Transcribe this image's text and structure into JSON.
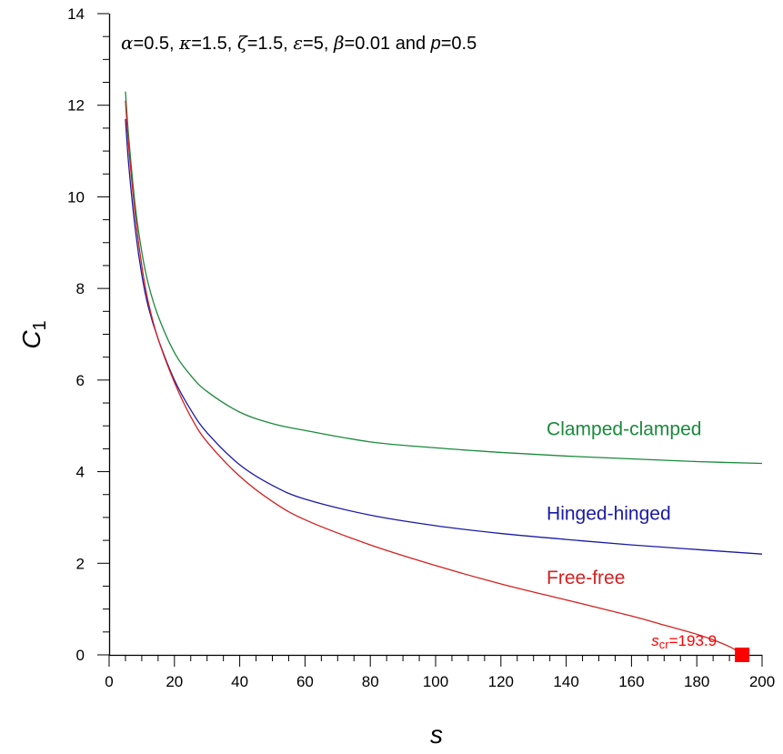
{
  "chart_data": {
    "type": "line",
    "title": "",
    "parameters": [
      {
        "symbol": "α",
        "value": "=0.5, "
      },
      {
        "symbol": "κ",
        "value": "=1.5, "
      },
      {
        "symbol": "ζ",
        "value": "=1.5, "
      },
      {
        "symbol": "ε",
        "value": "=5, "
      },
      {
        "symbol": "β",
        "value": "=0.01 and "
      },
      {
        "symbol": "p",
        "value": "=0.5"
      }
    ],
    "xlabel": "s",
    "ylabel_main": "C",
    "ylabel_sub": "1",
    "xlim": [
      0,
      200
    ],
    "ylim": [
      0,
      14
    ],
    "x_ticks": [
      "0",
      "20",
      "40",
      "60",
      "80",
      "100",
      "120",
      "140",
      "160",
      "180",
      "200"
    ],
    "y_ticks": [
      "0",
      "2",
      "4",
      "6",
      "8",
      "10",
      "12",
      "14"
    ],
    "grid": false,
    "series": [
      {
        "name": "Clamped-clamped",
        "color": "#1a8a3c",
        "x": [
          5,
          6,
          8,
          10,
          12,
          15,
          20,
          25,
          30,
          40,
          50,
          60,
          80,
          100,
          120,
          140,
          160,
          180,
          200
        ],
        "y": [
          12.3,
          11.3,
          9.8,
          8.8,
          8.1,
          7.4,
          6.6,
          6.1,
          5.75,
          5.3,
          5.05,
          4.9,
          4.65,
          4.52,
          4.42,
          4.34,
          4.28,
          4.22,
          4.18
        ]
      },
      {
        "name": "Hinged-hinged",
        "color": "#1a1aa6",
        "x": [
          5,
          6,
          8,
          10,
          12,
          15,
          20,
          25,
          30,
          40,
          50,
          60,
          80,
          100,
          120,
          140,
          160,
          180,
          200
        ],
        "y": [
          11.7,
          10.7,
          9.3,
          8.3,
          7.6,
          6.9,
          6.0,
          5.35,
          4.85,
          4.15,
          3.7,
          3.4,
          3.05,
          2.82,
          2.65,
          2.52,
          2.4,
          2.3,
          2.2
        ]
      },
      {
        "name": "Free-free",
        "color": "#d42020",
        "x": [
          5,
          6,
          8,
          10,
          12,
          15,
          20,
          25,
          30,
          40,
          50,
          60,
          80,
          100,
          120,
          140,
          160,
          170,
          180,
          186,
          190,
          192,
          193.9
        ],
        "y": [
          12.1,
          11.1,
          9.6,
          8.5,
          7.7,
          6.9,
          5.95,
          5.2,
          4.65,
          3.9,
          3.35,
          2.95,
          2.4,
          1.95,
          1.55,
          1.2,
          0.85,
          0.65,
          0.45,
          0.3,
          0.18,
          0.1,
          0.0
        ]
      }
    ],
    "label_positions": [
      {
        "series": 0,
        "x": 134,
        "y": 4.8
      },
      {
        "series": 1,
        "x": 134,
        "y": 2.95
      },
      {
        "series": 2,
        "x": 134,
        "y": 1.55
      }
    ],
    "critical_point": {
      "label_main": "s",
      "label_sub": "cr",
      "label_value": "=193.9",
      "x": 193.9,
      "y": 0,
      "color": "#ff0000"
    }
  }
}
